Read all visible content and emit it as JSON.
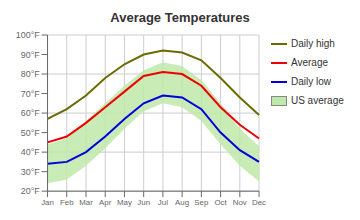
{
  "chart_data": {
    "type": "line",
    "title": "Average Temperatures",
    "categories": [
      "Jan",
      "Feb",
      "Mar",
      "Apr",
      "May",
      "Jun",
      "Jul",
      "Aug",
      "Sep",
      "Oct",
      "Nov",
      "Dec"
    ],
    "series": [
      {
        "name": "Daily high",
        "type": "line",
        "color": "#6b6b00",
        "values": [
          57,
          62,
          69,
          78,
          85,
          90,
          92,
          91,
          87,
          78,
          68,
          59
        ]
      },
      {
        "name": "Average",
        "type": "line",
        "color": "#ee0000",
        "values": [
          45,
          48,
          55,
          63,
          71,
          79,
          81,
          80,
          74,
          63,
          54,
          47
        ]
      },
      {
        "name": "Daily low",
        "type": "line",
        "color": "#0000dd",
        "values": [
          34,
          35,
          40,
          48,
          57,
          65,
          69,
          68,
          62,
          50,
          41,
          35
        ]
      },
      {
        "name": "US average",
        "type": "band",
        "color": "#c0e8a8",
        "low": [
          24,
          26,
          33,
          42,
          52,
          61,
          65,
          63,
          56,
          44,
          33,
          25
        ],
        "high": [
          44,
          47,
          56,
          65,
          74,
          82,
          86,
          84,
          77,
          65,
          52,
          43
        ]
      }
    ],
    "ylim": [
      20,
      100
    ],
    "yticks": [
      {
        "value": 20,
        "label": "20°F"
      },
      {
        "value": 30,
        "label": "30°F"
      },
      {
        "value": 40,
        "label": "40°F"
      },
      {
        "value": 50,
        "label": "50°F"
      },
      {
        "value": 60,
        "label": "60°F"
      },
      {
        "value": 70,
        "label": "70°F"
      },
      {
        "value": 80,
        "label": "80°F"
      },
      {
        "value": 90,
        "label": "90°F"
      },
      {
        "value": 100,
        "label": "100°F"
      }
    ],
    "grid": true
  }
}
